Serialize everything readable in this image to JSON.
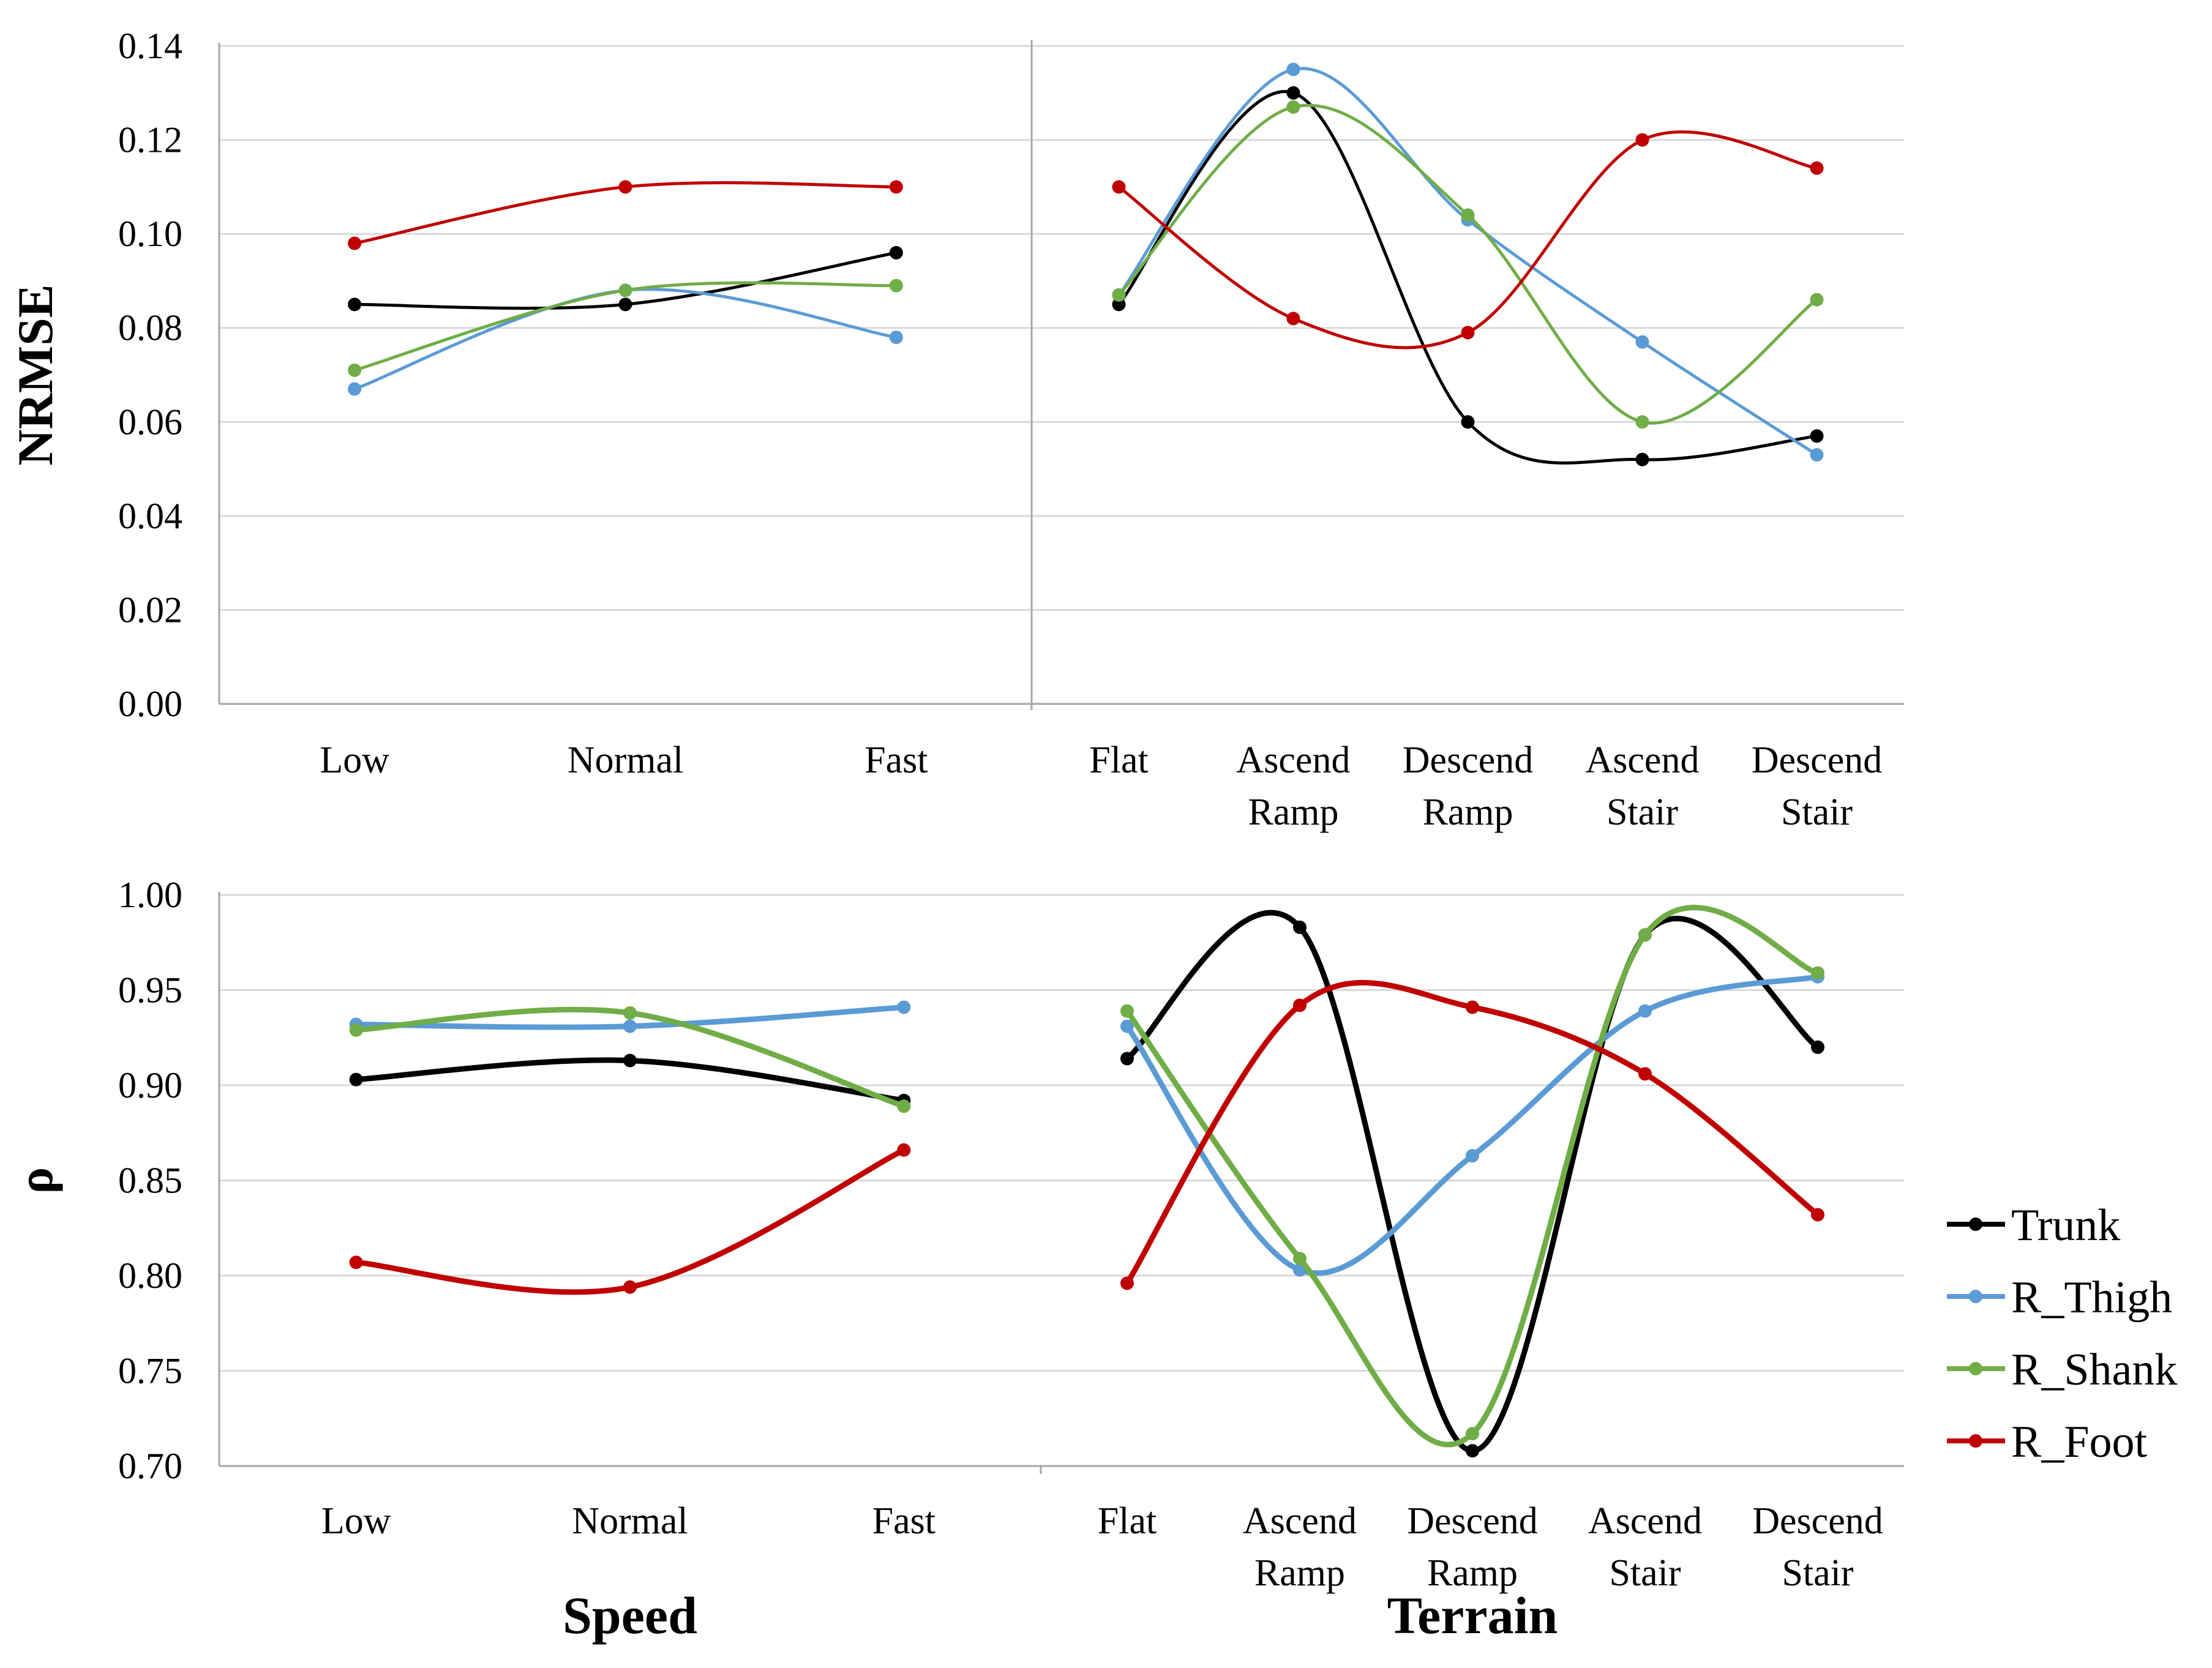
{
  "chart_data": [
    {
      "type": "line",
      "panel": "top",
      "ylabel": "NRMSE",
      "ylim": [
        0,
        0.14
      ],
      "yticks": [
        "0.00",
        "0.02",
        "0.04",
        "0.06",
        "0.08",
        "0.10",
        "0.12",
        "0.14"
      ],
      "grid": true,
      "groups": [
        {
          "categories": [
            [
              "Low"
            ],
            [
              "Normal"
            ],
            [
              "Fast"
            ]
          ],
          "series": [
            {
              "name": "Trunk",
              "values": [
                0.085,
                0.085,
                0.096
              ]
            },
            {
              "name": "R_Thigh",
              "values": [
                0.067,
                0.088,
                0.078
              ]
            },
            {
              "name": "R_Shank",
              "values": [
                0.071,
                0.088,
                0.089
              ]
            },
            {
              "name": "R_Foot",
              "values": [
                0.098,
                0.11,
                0.11
              ]
            }
          ]
        },
        {
          "categories": [
            [
              "Flat"
            ],
            [
              "Ascend",
              "Ramp"
            ],
            [
              "Descend",
              "Ramp"
            ],
            [
              "Ascend",
              "Stair"
            ],
            [
              "Descend",
              "Stair"
            ]
          ],
          "series": [
            {
              "name": "Trunk",
              "values": [
                0.085,
                0.13,
                0.06,
                0.052,
                0.057
              ]
            },
            {
              "name": "R_Thigh",
              "values": [
                0.087,
                0.135,
                0.103,
                0.077,
                0.053
              ]
            },
            {
              "name": "R_Shank",
              "values": [
                0.087,
                0.127,
                0.104,
                0.06,
                0.086
              ]
            },
            {
              "name": "R_Foot",
              "values": [
                0.11,
                0.082,
                0.079,
                0.12,
                0.114
              ]
            }
          ]
        }
      ]
    },
    {
      "type": "line",
      "panel": "bottom",
      "ylabel": "ρ",
      "ylim": [
        0.7,
        1.0
      ],
      "yticks": [
        "0.70",
        "0.75",
        "0.80",
        "0.85",
        "0.90",
        "0.95",
        "1.00"
      ],
      "grid": true,
      "groups": [
        {
          "xlabel": "Speed",
          "categories": [
            [
              "Low"
            ],
            [
              "Normal"
            ],
            [
              "Fast"
            ]
          ],
          "series": [
            {
              "name": "Trunk",
              "values": [
                0.903,
                0.913,
                0.892
              ]
            },
            {
              "name": "R_Thigh",
              "values": [
                0.932,
                0.931,
                0.941
              ]
            },
            {
              "name": "R_Shank",
              "values": [
                0.929,
                0.938,
                0.889
              ]
            },
            {
              "name": "R_Foot",
              "values": [
                0.807,
                0.794,
                0.866
              ]
            }
          ]
        },
        {
          "xlabel": "Terrain",
          "categories": [
            [
              "Flat"
            ],
            [
              "Ascend",
              "Ramp"
            ],
            [
              "Descend",
              "Ramp"
            ],
            [
              "Ascend",
              "Stair"
            ],
            [
              "Descend",
              "Stair"
            ]
          ],
          "series": [
            {
              "name": "Trunk",
              "values": [
                0.914,
                0.983,
                0.708,
                0.979,
                0.92
              ]
            },
            {
              "name": "R_Thigh",
              "values": [
                0.931,
                0.803,
                0.863,
                0.939,
                0.957
              ]
            },
            {
              "name": "R_Shank",
              "values": [
                0.939,
                0.809,
                0.717,
                0.979,
                0.959
              ]
            },
            {
              "name": "R_Foot",
              "values": [
                0.796,
                0.942,
                0.941,
                0.906,
                0.832
              ]
            }
          ]
        }
      ]
    }
  ],
  "legend": {
    "placement": "right",
    "items": [
      {
        "name": "Trunk",
        "color": "#000000"
      },
      {
        "name": "R_Thigh",
        "color": "#5B9BD5"
      },
      {
        "name": "R_Shank",
        "color": "#70AD47"
      },
      {
        "name": "R_Foot",
        "color": "#C00000"
      }
    ]
  }
}
